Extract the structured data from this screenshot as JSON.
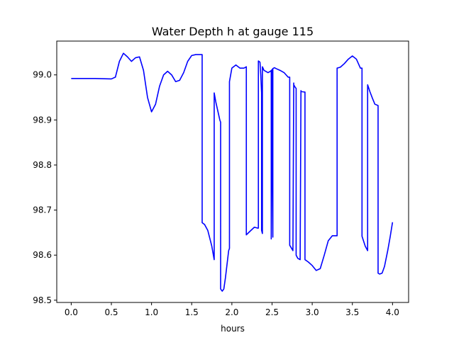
{
  "chart_data": {
    "type": "line",
    "title": "Water Depth h at gauge 115",
    "xlabel": "hours",
    "ylabel": "",
    "xlim": [
      -0.18,
      4.2
    ],
    "ylim": [
      98.495,
      99.075
    ],
    "xticks": [
      0.0,
      0.5,
      1.0,
      1.5,
      2.0,
      2.5,
      3.0,
      3.5,
      4.0
    ],
    "xtick_labels": [
      "0.0",
      "0.5",
      "1.0",
      "1.5",
      "2.0",
      "2.5",
      "3.0",
      "3.5",
      "4.0"
    ],
    "yticks": [
      98.5,
      98.6,
      98.7,
      98.8,
      98.9,
      99.0
    ],
    "ytick_labels": [
      "98.5",
      "98.6",
      "98.7",
      "98.8",
      "98.9",
      "99.0"
    ],
    "grid": false,
    "colors": {
      "line": "#0000ff"
    },
    "series": [
      {
        "x": [
          0.0,
          0.3,
          0.5,
          0.55,
          0.6,
          0.65,
          0.7,
          0.75,
          0.8,
          0.85,
          0.9,
          0.95,
          1.0,
          1.05,
          1.1,
          1.15,
          1.2,
          1.25,
          1.3,
          1.35,
          1.4,
          1.45,
          1.5,
          1.55,
          1.6,
          1.63,
          1.63,
          1.66,
          1.7,
          1.75,
          1.78,
          1.78,
          1.8,
          1.85,
          1.86,
          1.86,
          1.88,
          1.9,
          1.92,
          1.96,
          1.97,
          1.97,
          2.0,
          2.05,
          2.1,
          2.15,
          2.18,
          2.18,
          2.22,
          2.28,
          2.32,
          2.33,
          2.33,
          2.35,
          2.36,
          2.37,
          2.37,
          2.38,
          2.38,
          2.4,
          2.45,
          2.48,
          2.49,
          2.49,
          2.5,
          2.51,
          2.51,
          2.52,
          2.53,
          2.55,
          2.6,
          2.65,
          2.7,
          2.72,
          2.72,
          2.76,
          2.77,
          2.77,
          2.79,
          2.8,
          2.8,
          2.82,
          2.85,
          2.86,
          2.86,
          2.9,
          2.91,
          2.91,
          2.95,
          3.0,
          3.05,
          3.1,
          3.15,
          3.2,
          3.25,
          3.3,
          3.31,
          3.31,
          3.35,
          3.4,
          3.45,
          3.5,
          3.55,
          3.6,
          3.62,
          3.62,
          3.66,
          3.69,
          3.69,
          3.72,
          3.75,
          3.78,
          3.82,
          3.82,
          3.84,
          3.87,
          3.9,
          3.94,
          3.97,
          4.0
        ],
        "y": [
          98.992,
          98.992,
          98.991,
          98.995,
          99.03,
          99.048,
          99.04,
          99.03,
          99.038,
          99.04,
          99.01,
          98.95,
          98.918,
          98.935,
          98.975,
          99.0,
          99.008,
          99.0,
          98.985,
          98.988,
          99.005,
          99.03,
          99.043,
          99.045,
          99.045,
          99.045,
          98.672,
          98.668,
          98.655,
          98.62,
          98.59,
          98.96,
          98.94,
          98.9,
          98.895,
          98.525,
          98.52,
          98.525,
          98.55,
          98.61,
          98.615,
          98.985,
          99.015,
          99.022,
          99.015,
          99.015,
          99.018,
          98.645,
          98.652,
          98.662,
          98.66,
          98.66,
          99.031,
          99.028,
          99.0,
          98.96,
          98.655,
          98.648,
          99.018,
          99.01,
          99.005,
          99.008,
          99.01,
          98.636,
          99.012,
          98.64,
          99.014,
          99.015,
          99.016,
          99.014,
          99.01,
          99.005,
          98.995,
          98.995,
          98.622,
          98.61,
          98.982,
          98.978,
          98.972,
          98.97,
          98.6,
          98.593,
          98.59,
          98.965,
          98.963,
          98.962,
          98.962,
          98.59,
          98.585,
          98.577,
          98.566,
          98.57,
          98.6,
          98.632,
          98.643,
          98.643,
          98.643,
          99.015,
          99.017,
          99.025,
          99.035,
          99.042,
          99.035,
          99.015,
          99.015,
          98.642,
          98.62,
          98.61,
          98.978,
          98.962,
          98.948,
          98.935,
          98.932,
          98.56,
          98.558,
          98.56,
          98.575,
          98.61,
          98.64,
          98.673
        ]
      }
    ]
  }
}
